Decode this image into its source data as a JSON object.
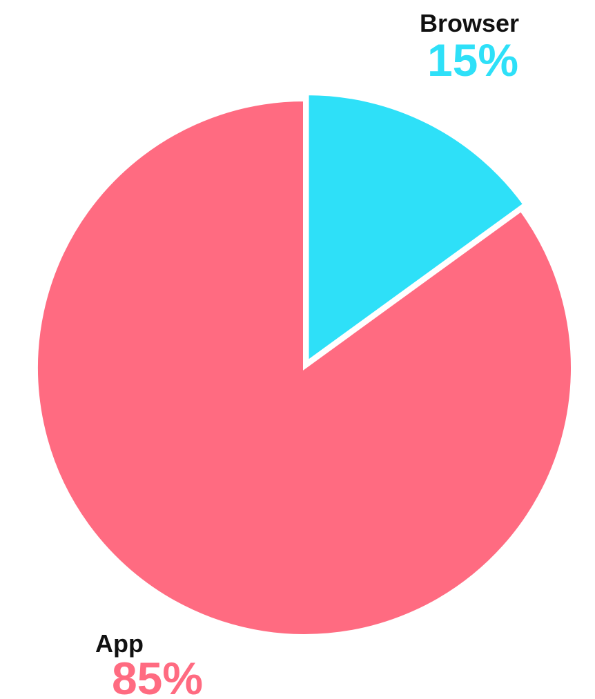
{
  "chart_data": {
    "type": "pie",
    "start": "12 o'clock",
    "direction": "clockwise",
    "slices": [
      {
        "label": "Browser",
        "value": 15,
        "display": "15%",
        "color": "#2EE0F8"
      },
      {
        "label": "App",
        "value": 85,
        "display": "85%",
        "color": "#FF6B81"
      }
    ]
  }
}
